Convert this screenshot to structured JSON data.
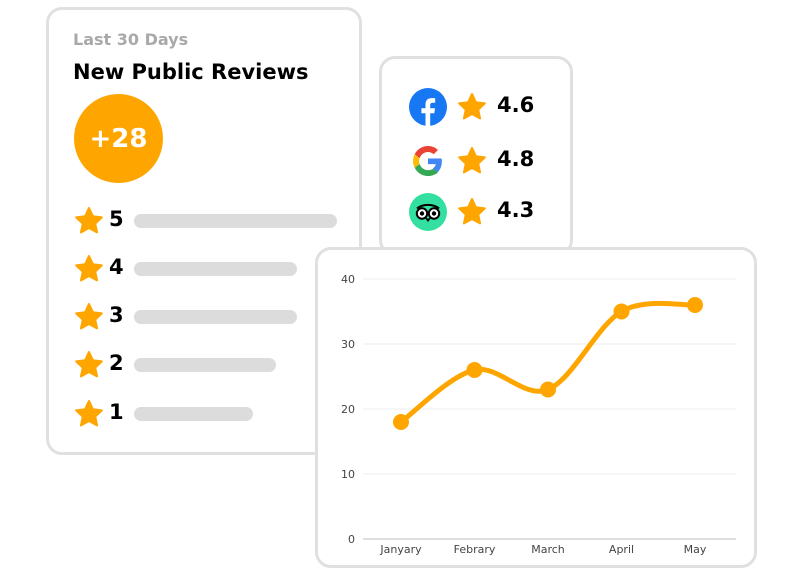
{
  "reviews": {
    "period_label": "Last 30 Days",
    "title": "New Public Reviews",
    "total_badge": "+28",
    "ratings": [
      {
        "stars": "5",
        "share": 1.0
      },
      {
        "stars": "4",
        "share": 0.8
      },
      {
        "stars": "3",
        "share": 0.8
      },
      {
        "stars": "2",
        "share": 0.7
      },
      {
        "stars": "1",
        "share": 0.6
      }
    ]
  },
  "platforms": [
    {
      "name": "facebook",
      "icon": "facebook-logo-icon",
      "score": "4.6"
    },
    {
      "name": "google",
      "icon": "google-logo-icon",
      "score": "4.8"
    },
    {
      "name": "tripadvisor",
      "icon": "tripadvisor-logo-icon",
      "score": "4.3"
    }
  ],
  "colors": {
    "accent": "#FFA500",
    "bar": "#DCDCDC",
    "facebook": "#1877F2",
    "tripadvisor": "#34E0A1",
    "card_border": "#E0E0E0"
  },
  "chart_data": {
    "type": "line",
    "categories": [
      "Janyary",
      "Febrary",
      "March",
      "April",
      "May"
    ],
    "series": [
      {
        "values": [
          18,
          26,
          23,
          35,
          36
        ]
      }
    ],
    "ylim": [
      0,
      40
    ],
    "yticks": [
      0,
      10,
      20,
      30,
      40
    ],
    "grid": true,
    "title": "",
    "xlabel": "",
    "ylabel": ""
  }
}
